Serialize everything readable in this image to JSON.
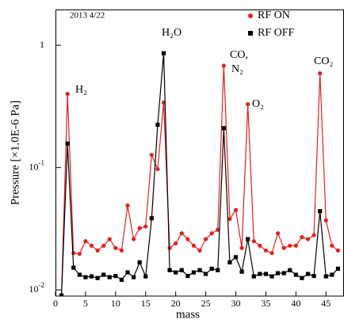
{
  "chart_data": {
    "type": "line",
    "log_y": true,
    "ylabel": "Pressure [×1.0E-6 Pa]",
    "xlabel": "mass",
    "annotations": [
      "2013 4/22",
      "H₂",
      "H₂O",
      "CO,",
      "N₂",
      "O₂",
      "CO₂"
    ],
    "legend": "upper right",
    "x": [
      1,
      2,
      3,
      4,
      5,
      6,
      7,
      8,
      9,
      10,
      11,
      12,
      13,
      14,
      15,
      16,
      17,
      18,
      19,
      20,
      21,
      22,
      23,
      24,
      25,
      26,
      27,
      28,
      29,
      30,
      31,
      32,
      33,
      34,
      35,
      36,
      37,
      38,
      39,
      40,
      41,
      42,
      43,
      44,
      45,
      46,
      47
    ],
    "series": [
      {
        "name": "RF ON",
        "color": "#e02020",
        "marker": "circle",
        "values": [
          0.009,
          0.4,
          0.02,
          0.0197,
          0.025,
          0.023,
          0.021,
          0.023,
          0.026,
          0.022,
          0.021,
          0.049,
          0.026,
          0.032,
          0.033,
          0.127,
          0.097,
          0.34,
          0.022,
          0.024,
          0.029,
          0.026,
          0.023,
          0.021,
          0.026,
          0.029,
          0.031,
          0.68,
          0.038,
          0.045,
          0.022,
          0.33,
          0.025,
          0.023,
          0.021,
          0.02,
          0.029,
          0.022,
          0.023,
          0.023,
          0.027,
          0.026,
          0.028,
          0.59,
          0.037,
          0.023,
          0.021
        ]
      },
      {
        "name": "RF OFF",
        "color": "#000000",
        "marker": "square",
        "values": [
          0.009,
          0.157,
          0.0152,
          0.0133,
          0.0127,
          0.0129,
          0.0125,
          0.0133,
          0.0127,
          0.013,
          0.0121,
          0.0139,
          0.0127,
          0.0168,
          0.0129,
          0.0385,
          0.224,
          0.86,
          0.0145,
          0.0139,
          0.0145,
          0.013,
          0.0139,
          0.0145,
          0.0135,
          0.0149,
          0.0145,
          0.21,
          0.0168,
          0.0185,
          0.0141,
          0.026,
          0.0129,
          0.0135,
          0.0135,
          0.0129,
          0.0137,
          0.0137,
          0.0145,
          0.0133,
          0.0125,
          0.0135,
          0.013,
          0.044,
          0.0129,
          0.0133,
          0.0149
        ]
      }
    ],
    "xlim": [
      0,
      48
    ],
    "xticks": [
      0,
      5,
      10,
      15,
      20,
      25,
      30,
      35,
      40,
      45
    ],
    "ylim": [
      0.0089,
      1.96
    ],
    "yticks": [
      {
        "value": 1,
        "label": "1"
      },
      {
        "value": 0.1,
        "label": "10",
        "exponent": "-1"
      },
      {
        "value": 0.01,
        "label": "10",
        "exponent": "-2"
      }
    ]
  }
}
